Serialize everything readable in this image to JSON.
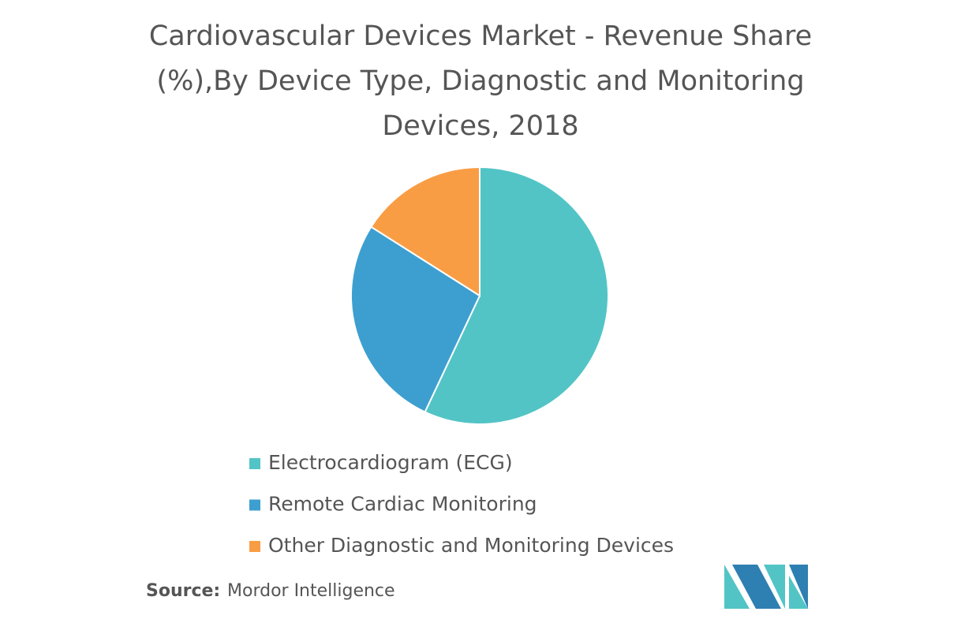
{
  "chart_data": {
    "type": "pie",
    "title": "Cardiovascular Devices Market - Revenue Share (%),By Device Type, Diagnostic and Monitoring Devices, 2018",
    "categories": [
      "Electrocardiogram (ECG)",
      "Remote Cardiac Monitoring",
      "Other Diagnostic and Monitoring Devices"
    ],
    "values": [
      57,
      27,
      16
    ],
    "colors": [
      "#52c4c6",
      "#3d9fcf",
      "#f99d45"
    ],
    "source": {
      "label": "Source:",
      "text": "Mordor Intelligence"
    }
  }
}
